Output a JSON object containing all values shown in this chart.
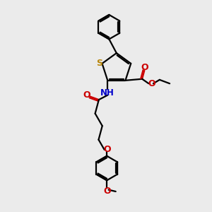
{
  "bg_color": "#ebebeb",
  "bond_color": "#000000",
  "sulfur_color": "#b8860b",
  "oxygen_color": "#cc0000",
  "nitrogen_color": "#0000cc",
  "line_width": 1.6,
  "figsize": [
    3.0,
    3.0
  ],
  "dpi": 100,
  "xlim": [
    0,
    10
  ],
  "ylim": [
    0,
    10
  ]
}
